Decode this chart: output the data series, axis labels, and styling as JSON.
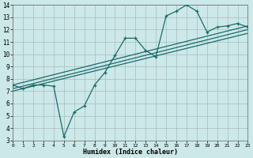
{
  "xlabel": "Humidex (Indice chaleur)",
  "background_color": "#cce8e8",
  "grid_color": "#aabbbb",
  "line_color": "#1a6b6b",
  "xlim": [
    0,
    23
  ],
  "ylim": [
    3,
    14
  ],
  "xticks": [
    0,
    1,
    2,
    3,
    4,
    5,
    6,
    7,
    8,
    9,
    10,
    11,
    12,
    13,
    14,
    15,
    16,
    17,
    18,
    19,
    20,
    21,
    22,
    23
  ],
  "yticks": [
    3,
    4,
    5,
    6,
    7,
    8,
    9,
    10,
    11,
    12,
    13,
    14
  ],
  "main_x": [
    0,
    1,
    2,
    3,
    4,
    5,
    6,
    7,
    8,
    9,
    10,
    11,
    12,
    13,
    14,
    15,
    16,
    17,
    18,
    19,
    20,
    21,
    22,
    23
  ],
  "main_y": [
    7.5,
    7.2,
    7.5,
    7.5,
    7.4,
    3.3,
    5.3,
    5.8,
    7.5,
    8.5,
    9.9,
    11.3,
    11.3,
    10.3,
    9.8,
    13.1,
    13.5,
    14.0,
    13.5,
    11.8,
    12.2,
    12.3,
    12.5,
    12.2
  ],
  "trend1_x": [
    0,
    23
  ],
  "trend1_y": [
    7.5,
    12.3
  ],
  "trend2_x": [
    0,
    23
  ],
  "trend2_y": [
    7.2,
    12.0
  ],
  "trend3_x": [
    0,
    23
  ],
  "trend3_y": [
    7.0,
    11.7
  ]
}
